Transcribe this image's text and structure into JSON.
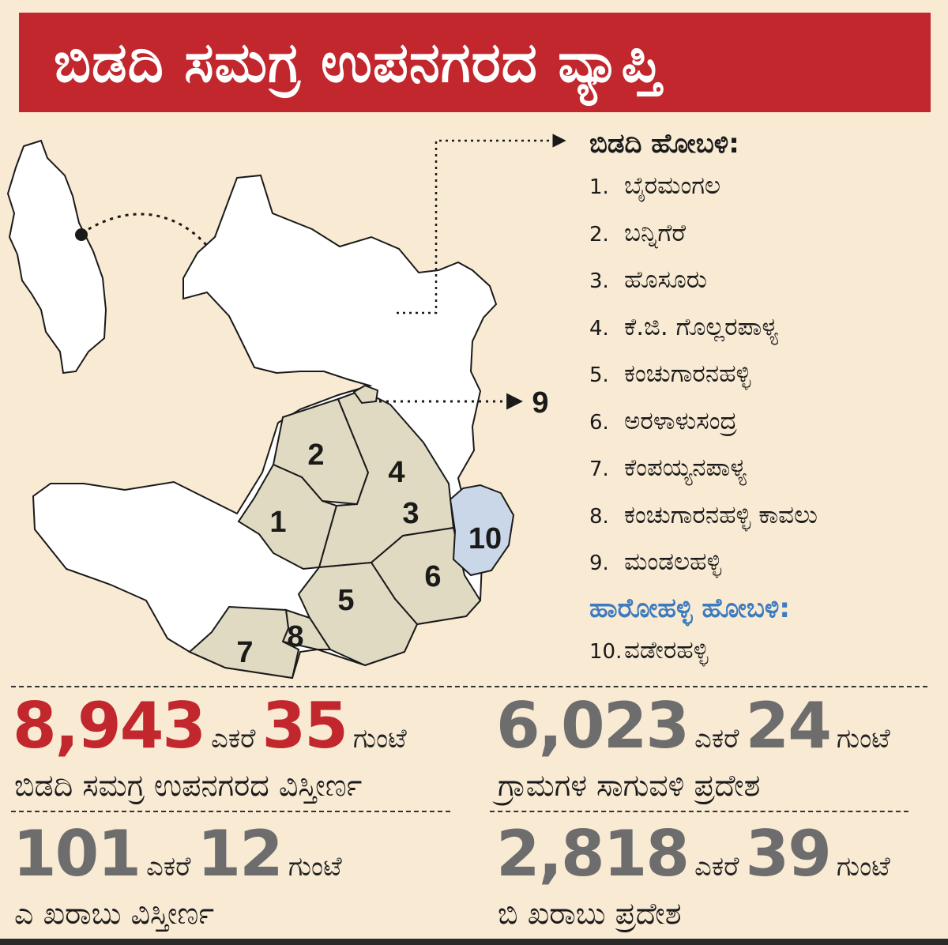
{
  "title": "ಬಿಡದಿ ಸಮಗ್ರ ಉಪನಗರದ ವ್ಯಾಪ್ತಿ",
  "colors": {
    "title_bg": "#c1272d",
    "background": "#f9ead4",
    "hobli_region": "#e0dac2",
    "harohalli_region": "#c9d7e8",
    "accent_red": "#c1272d",
    "accent_blue": "#3b7bbf",
    "stat_grey": "#6d6d6d"
  },
  "map": {
    "region_labels": [
      "1",
      "2",
      "3",
      "4",
      "5",
      "6",
      "7",
      "8",
      "10"
    ],
    "callout_label": "9"
  },
  "legend": {
    "bidadi_heading": "ಬಿಡದಿ ಹೋಬಳಿ:",
    "bidadi_villages": [
      {
        "num": "1.",
        "name": "ಬೈರಮಂಗಲ"
      },
      {
        "num": "2.",
        "name": "ಬನ್ನಿಗೆರೆ"
      },
      {
        "num": "3.",
        "name": "ಹೊಸೂರು"
      },
      {
        "num": "4.",
        "name": "ಕೆ.ಜಿ. ಗೊಲ್ಲರಪಾಳ್ಯ"
      },
      {
        "num": "5.",
        "name": "ಕಂಚುಗಾರನಹಳ್ಳಿ"
      },
      {
        "num": "6.",
        "name": "ಅರಳಾಳುಸಂದ್ರ"
      },
      {
        "num": "7.",
        "name": "ಕೆಂಪಯ್ಯನಪಾಳ್ಯ"
      },
      {
        "num": "8.",
        "name": "ಕಂಚುಗಾರನಹಳ್ಳಿ ಕಾವಲು"
      },
      {
        "num": "9.",
        "name": "ಮಂಡಲಹಳ್ಳಿ"
      }
    ],
    "harohalli_heading": "ಹಾರೋಹಳ್ಳಿ ಹೋಬಳಿ:",
    "harohalli_villages": [
      {
        "num": "10.",
        "name": "ವಡೇರಹಳ್ಳಿ"
      }
    ]
  },
  "stats": {
    "total": {
      "acres": "8,943",
      "acre_unit": "ಎಕರೆ",
      "guntas": "35",
      "gunta_unit": "ಗುಂಟೆ",
      "label": "ಬಿಡದಿ ಸಮಗ್ರ ಉಪನಗರದ ವಿಸ್ತೀರ್ಣ"
    },
    "farm": {
      "acres": "6,023",
      "acre_unit": "ಎಕರೆ",
      "guntas": "24",
      "gunta_unit": "ಗುಂಟೆ",
      "label": "ಗ್ರಾಮಗಳ ಸಾಗುವಳಿ ಪ್ರದೇಶ"
    },
    "a_kharab": {
      "acres": "101",
      "acre_unit": "ಎಕರೆ",
      "guntas": "12",
      "gunta_unit": "ಗುಂಟೆ",
      "label": "ಎ ಖರಾಬು ವಿಸ್ತೀರ್ಣ"
    },
    "b_kharab": {
      "acres": "2,818",
      "acre_unit": "ಎಕರೆ",
      "guntas": "39",
      "gunta_unit": "ಗುಂಟೆ",
      "label": "ಬಿ ಖರಾಬು ಪ್ರದೇಶ"
    }
  }
}
